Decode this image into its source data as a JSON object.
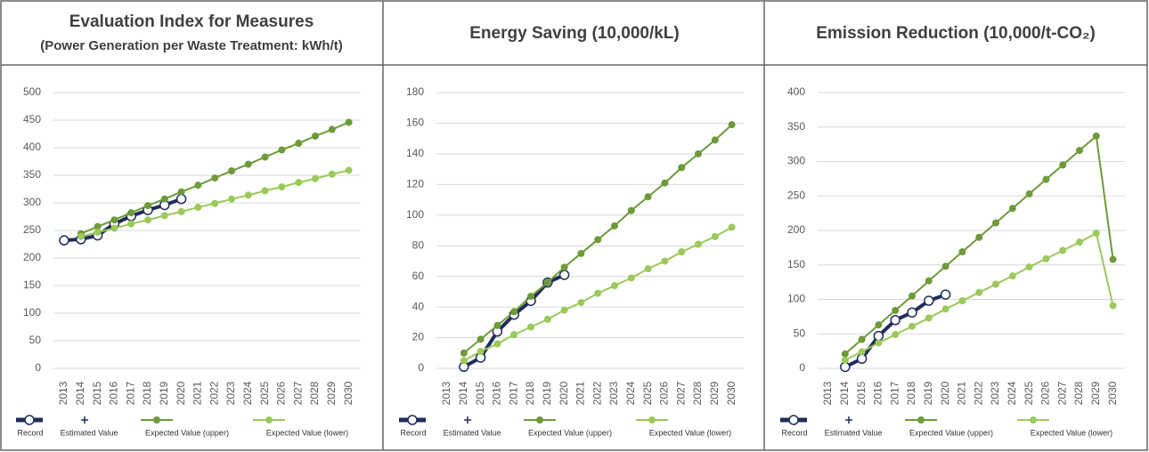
{
  "chart_data": [
    {
      "type": "line",
      "title": "Evaluation Index for Measures",
      "subtitle": "(Power Generation per Waste Treatment: kWh/t)",
      "categories": [
        "2013",
        "2014",
        "2015",
        "2016",
        "2017",
        "2018",
        "2019",
        "2020",
        "2021",
        "2022",
        "2023",
        "2024",
        "2025",
        "2026",
        "2027",
        "2028",
        "2029",
        "2030"
      ],
      "series": [
        {
          "name": "Record",
          "color": "#1f2d5a",
          "values": [
            232,
            234,
            241,
            262,
            276,
            287,
            296,
            307,
            null,
            null,
            null,
            null,
            null,
            null,
            null,
            null,
            null,
            null
          ]
        },
        {
          "name": "Estimated Value",
          "color": "#1f2d5a",
          "values": [
            null,
            null,
            null,
            null,
            null,
            null,
            null,
            null,
            null,
            null,
            null,
            null,
            null,
            null,
            null,
            null,
            null,
            null
          ]
        },
        {
          "name": "Expected Value (upper)",
          "color": "#6e9a3a",
          "values": [
            null,
            244,
            257,
            269,
            282,
            295,
            307,
            320,
            332,
            345,
            358,
            370,
            383,
            396,
            408,
            421,
            433,
            446
          ]
        },
        {
          "name": "Expected Value (lower)",
          "color": "#9bc95a",
          "values": [
            null,
            239,
            247,
            254,
            262,
            269,
            277,
            284,
            292,
            299,
            307,
            314,
            322,
            329,
            337,
            344,
            352,
            359
          ]
        }
      ],
      "ylim": [
        0,
        500
      ],
      "yticks": [
        0,
        50,
        100,
        150,
        200,
        250,
        300,
        350,
        400,
        450,
        500
      ],
      "grid": true
    },
    {
      "type": "line",
      "title": "Energy Saving (10,000/kL)",
      "categories": [
        "2013",
        "2014",
        "2015",
        "2016",
        "2017",
        "2018",
        "2019",
        "2020",
        "2021",
        "2022",
        "2023",
        "2024",
        "2025",
        "2026",
        "2027",
        "2028",
        "2029",
        "2030"
      ],
      "series": [
        {
          "name": "Record",
          "color": "#1f2d5a",
          "values": [
            null,
            1,
            7,
            24,
            35,
            44,
            56,
            61,
            null,
            null,
            null,
            null,
            null,
            null,
            null,
            null,
            null,
            null
          ]
        },
        {
          "name": "Estimated Value",
          "color": "#1f2d5a",
          "values": [
            null,
            null,
            null,
            null,
            null,
            null,
            null,
            null,
            null,
            null,
            null,
            null,
            null,
            null,
            null,
            null,
            null,
            null
          ]
        },
        {
          "name": "Expected Value (upper)",
          "color": "#6e9a3a",
          "values": [
            null,
            10,
            19,
            28,
            37,
            47,
            56,
            66,
            75,
            84,
            93,
            103,
            112,
            121,
            131,
            140,
            149,
            159
          ]
        },
        {
          "name": "Expected Value (lower)",
          "color": "#9bc95a",
          "values": [
            null,
            5,
            11,
            16,
            22,
            27,
            32,
            38,
            43,
            49,
            54,
            59,
            65,
            70,
            76,
            81,
            86,
            92
          ]
        }
      ],
      "ylim": [
        0,
        180
      ],
      "yticks": [
        0,
        20,
        40,
        60,
        80,
        100,
        120,
        140,
        160,
        180
      ],
      "grid": true
    },
    {
      "type": "line",
      "title": "Emission Reduction (10,000/t-CO₂)",
      "categories": [
        "2013",
        "2014",
        "2015",
        "2016",
        "2017",
        "2018",
        "2019",
        "2020",
        "2021",
        "2022",
        "2023",
        "2024",
        "2025",
        "2026",
        "2027",
        "2028",
        "2029",
        "2030"
      ],
      "series": [
        {
          "name": "Record",
          "color": "#1f2d5a",
          "values": [
            null,
            2,
            14,
            47,
            70,
            81,
            98,
            107,
            null,
            null,
            null,
            null,
            null,
            null,
            null,
            null,
            null,
            null
          ]
        },
        {
          "name": "Estimated Value",
          "color": "#1f2d5a",
          "values": [
            null,
            null,
            null,
            null,
            null,
            null,
            null,
            null,
            null,
            null,
            null,
            null,
            null,
            null,
            null,
            null,
            null,
            null
          ]
        },
        {
          "name": "Expected Value (upper)",
          "color": "#6e9a3a",
          "values": [
            null,
            21,
            42,
            63,
            84,
            105,
            127,
            148,
            169,
            190,
            211,
            232,
            253,
            274,
            295,
            316,
            337,
            158
          ]
        },
        {
          "name": "Expected Value (lower)",
          "color": "#9bc95a",
          "values": [
            null,
            12,
            24,
            37,
            49,
            61,
            73,
            86,
            98,
            110,
            122,
            134,
            147,
            159,
            171,
            183,
            196,
            91
          ]
        }
      ],
      "ylim": [
        0,
        400
      ],
      "yticks": [
        0,
        50,
        100,
        150,
        200,
        250,
        300,
        350,
        400
      ],
      "grid": true
    }
  ]
}
